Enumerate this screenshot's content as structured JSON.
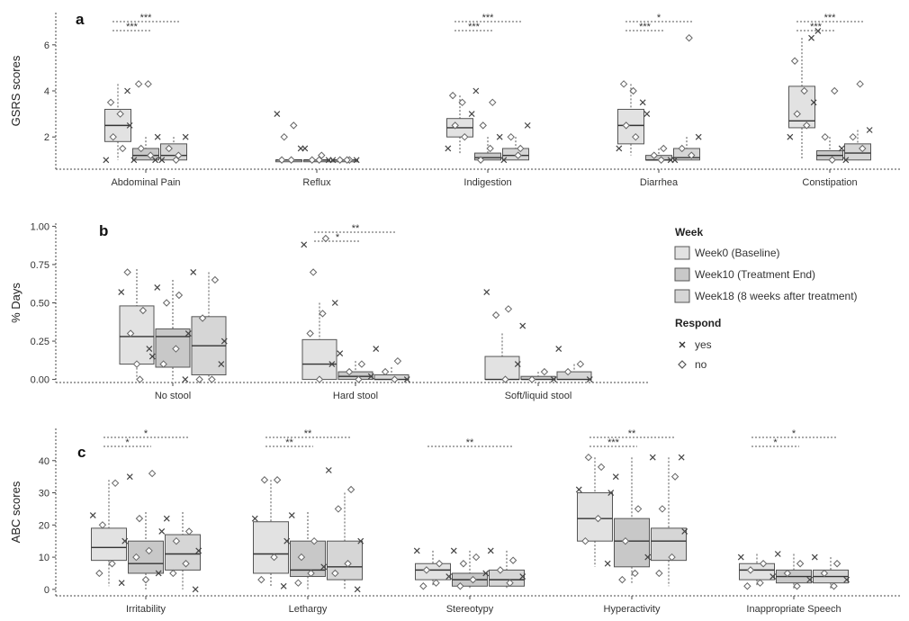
{
  "chart_data": [
    {
      "panel": "a",
      "type": "boxplot",
      "ylabel": "GSRS scores",
      "ylim": [
        0.6,
        7.4
      ],
      "yticks": [
        2,
        4,
        6
      ],
      "categories": [
        "Abdominal Pain",
        "Reflux",
        "Indigestion",
        "Diarrhea",
        "Constipation"
      ],
      "series": [
        {
          "name": "Week0 (Baseline)",
          "boxes": [
            [
              1.0,
              1.8,
              2.5,
              3.2,
              4.3
            ],
            [
              1.0,
              1.0,
              1.0,
              1.0,
              1.0
            ],
            [
              1.3,
              2.0,
              2.4,
              2.8,
              3.8
            ],
            [
              1.2,
              1.7,
              2.5,
              3.2,
              4.3
            ],
            [
              1.0,
              2.4,
              2.7,
              4.2,
              6.3
            ]
          ]
        },
        {
          "name": "Week10 (Treatment End)",
          "boxes": [
            [
              1.0,
              1.0,
              1.2,
              1.5,
              2.0
            ],
            [
              1.0,
              1.0,
              1.0,
              1.0,
              1.0
            ],
            [
              1.0,
              1.0,
              1.1,
              1.3,
              2.0
            ],
            [
              1.0,
              1.0,
              1.0,
              1.2,
              1.5
            ],
            [
              1.0,
              1.0,
              1.2,
              1.4,
              2.0
            ]
          ]
        },
        {
          "name": "Week18 (8 weeks after treatment)",
          "boxes": [
            [
              1.0,
              1.0,
              1.2,
              1.7,
              2.0
            ],
            [
              1.0,
              1.0,
              1.0,
              1.0,
              1.0
            ],
            [
              1.0,
              1.0,
              1.2,
              1.5,
              2.0
            ],
            [
              1.0,
              1.0,
              1.1,
              1.5,
              2.0
            ],
            [
              1.0,
              1.0,
              1.3,
              1.7,
              2.3
            ]
          ]
        }
      ],
      "points": [
        [
          [
            1.0,
            1.5,
            2.0,
            2.5,
            3.0,
            3.5,
            4.0
          ],
          [
            1.0,
            1.2,
            1.5,
            2.0,
            4.3,
            4.3,
            1.0
          ],
          [
            1.0,
            1.2,
            1.5,
            2.0,
            1.0
          ]
        ],
        [
          [
            3.0,
            2.5,
            2.0,
            1.5,
            1.0,
            1.0
          ],
          [
            1.5,
            1.2,
            1.0,
            1.0,
            1.0
          ],
          [
            1.0,
            1.0,
            1.0,
            1.0,
            1.0
          ]
        ],
        [
          [
            1.5,
            2.0,
            2.5,
            3.0,
            3.5,
            3.8
          ],
          [
            4.0,
            3.5,
            2.5,
            2.0,
            1.5,
            1.0
          ],
          [
            1.0,
            1.5,
            2.0,
            2.5,
            1.2
          ]
        ],
        [
          [
            1.5,
            2.0,
            2.5,
            3.5,
            4.0,
            4.3
          ],
          [
            3.0,
            1.5,
            1.2,
            1.0,
            1.0
          ],
          [
            1.0,
            1.2,
            1.5,
            2.0,
            6.3
          ]
        ],
        [
          [
            2.0,
            2.5,
            3.0,
            3.5,
            4.0,
            5.3,
            6.3
          ],
          [
            6.6,
            4.0,
            2.0,
            1.5,
            1.0
          ],
          [
            1.0,
            1.5,
            2.0,
            2.3,
            4.3
          ]
        ]
      ],
      "significance": [
        {
          "category": 0,
          "from": 0,
          "to": 1,
          "label": "***"
        },
        {
          "category": 0,
          "from": 0,
          "to": 2,
          "label": "***"
        },
        {
          "category": 2,
          "from": 0,
          "to": 1,
          "label": "***"
        },
        {
          "category": 2,
          "from": 0,
          "to": 2,
          "label": "***"
        },
        {
          "category": 3,
          "from": 0,
          "to": 1,
          "label": "***"
        },
        {
          "category": 3,
          "from": 0,
          "to": 2,
          "label": "*"
        },
        {
          "category": 4,
          "from": 0,
          "to": 1,
          "label": "***"
        },
        {
          "category": 4,
          "from": 0,
          "to": 2,
          "label": "***"
        }
      ]
    },
    {
      "panel": "b",
      "type": "boxplot",
      "ylabel": "% Days",
      "ylim": [
        -0.02,
        1.02
      ],
      "yticks": [
        0.0,
        0.25,
        0.5,
        0.75,
        1.0
      ],
      "ytick_labels": [
        "0.00",
        "0.25",
        "0.50",
        "0.75",
        "1.00"
      ],
      "categories": [
        "No stool",
        "Hard stool",
        "Soft/liquid stool"
      ],
      "series": [
        {
          "name": "Week0 (Baseline)",
          "boxes": [
            [
              0.0,
              0.1,
              0.28,
              0.48,
              0.72
            ],
            [
              0.0,
              0.0,
              0.1,
              0.26,
              0.5
            ],
            [
              0.0,
              0.0,
              0.0,
              0.15,
              0.3
            ]
          ]
        },
        {
          "name": "Week10 (Treatment End)",
          "boxes": [
            [
              0.0,
              0.08,
              0.28,
              0.33,
              0.65
            ],
            [
              0.0,
              0.0,
              0.02,
              0.05,
              0.12
            ],
            [
              0.0,
              0.0,
              0.0,
              0.02,
              0.05
            ]
          ]
        },
        {
          "name": "Week18 (8 weeks after treatment)",
          "boxes": [
            [
              0.0,
              0.03,
              0.22,
              0.41,
              0.7
            ],
            [
              0.0,
              0.0,
              0.0,
              0.03,
              0.08
            ],
            [
              0.0,
              0.0,
              0.0,
              0.05,
              0.1
            ]
          ]
        }
      ],
      "points": [
        [
          [
            0.57,
            0.45,
            0.3,
            0.15,
            0.0,
            0.7,
            0.2,
            0.1
          ],
          [
            0.6,
            0.55,
            0.5,
            0.3,
            0.2,
            0.1,
            0.0
          ],
          [
            0.7,
            0.65,
            0.4,
            0.25,
            0.0,
            0.0,
            0.1
          ]
        ],
        [
          [
            0.88,
            0.92,
            0.7,
            0.5,
            0.43,
            0.3,
            0.1,
            0.0
          ],
          [
            0.17,
            0.1,
            0.05,
            0.02,
            0.0
          ],
          [
            0.2,
            0.12,
            0.05,
            0.0,
            0.0
          ]
        ],
        [
          [
            0.57,
            0.46,
            0.42,
            0.1,
            0.0
          ],
          [
            0.35,
            0.05,
            0.0,
            0.0
          ],
          [
            0.2,
            0.1,
            0.05,
            0.0
          ]
        ]
      ],
      "significance": [
        {
          "category": 1,
          "from": 0,
          "to": 1,
          "label": "*"
        },
        {
          "category": 1,
          "from": 0,
          "to": 2,
          "label": "**"
        }
      ]
    },
    {
      "panel": "c",
      "type": "boxplot",
      "ylabel": "ABC scores",
      "ylim": [
        -2,
        50
      ],
      "yticks": [
        0,
        10,
        20,
        30,
        40
      ],
      "categories": [
        "Irritability",
        "Lethargy",
        "Stereotypy",
        "Hyperactivity",
        "Inappropriate Speech"
      ],
      "series": [
        {
          "name": "Week0 (Baseline)",
          "boxes": [
            [
              1,
              9,
              13,
              19,
              34
            ],
            [
              1,
              5,
              11,
              21,
              34
            ],
            [
              1,
              3,
              6,
              8,
              12
            ],
            [
              7,
              15,
              22,
              30,
              41
            ],
            [
              1,
              3,
              6,
              8,
              11
            ]
          ]
        },
        {
          "name": "Week10 (Treatment End)",
          "boxes": [
            [
              0,
              5,
              8,
              15,
              24
            ],
            [
              0,
              4,
              6,
              15,
              24
            ],
            [
              0,
              1,
              3,
              5,
              12
            ],
            [
              2,
              7,
              15,
              22,
              41
            ],
            [
              0,
              2,
              4,
              6,
              11
            ]
          ]
        },
        {
          "name": "Week18 (8 weeks after treatment)",
          "boxes": [
            [
              0,
              6,
              11,
              17,
              24
            ],
            [
              0,
              3,
              7,
              15,
              30
            ],
            [
              0,
              1,
              3,
              6,
              12
            ],
            [
              1,
              9,
              15,
              19,
              41
            ],
            [
              0,
              2,
              4,
              6,
              10
            ]
          ]
        }
      ],
      "points": [
        [
          [
            23,
            33,
            20,
            15,
            8,
            5,
            2
          ],
          [
            35,
            36,
            22,
            18,
            12,
            10,
            5,
            3
          ],
          [
            22,
            18,
            15,
            12,
            8,
            5,
            0
          ]
        ],
        [
          [
            22,
            34,
            34,
            15,
            10,
            3,
            1
          ],
          [
            23,
            15,
            10,
            7,
            5,
            2
          ],
          [
            37,
            31,
            25,
            15,
            8,
            5,
            0
          ]
        ],
        [
          [
            12,
            8,
            6,
            4,
            2,
            1
          ],
          [
            12,
            10,
            8,
            5,
            3,
            1
          ],
          [
            12,
            9,
            6,
            4,
            2
          ]
        ],
        [
          [
            31,
            38,
            41,
            30,
            22,
            15,
            8
          ],
          [
            35,
            25,
            15,
            10,
            5,
            3
          ],
          [
            41,
            35,
            25,
            18,
            10,
            5,
            41
          ]
        ],
        [
          [
            10,
            8,
            6,
            4,
            2,
            1
          ],
          [
            11,
            8,
            5,
            3,
            1
          ],
          [
            10,
            8,
            5,
            3,
            1
          ]
        ]
      ],
      "significance": [
        {
          "category": 0,
          "from": 0,
          "to": 1,
          "label": "*"
        },
        {
          "category": 0,
          "from": 0,
          "to": 2,
          "label": "*"
        },
        {
          "category": 1,
          "from": 0,
          "to": 1,
          "label": "**"
        },
        {
          "category": 1,
          "from": 0,
          "to": 2,
          "label": "**"
        },
        {
          "category": 2,
          "from": 0,
          "to": 2,
          "label": "**"
        },
        {
          "category": 3,
          "from": 0,
          "to": 1,
          "label": "***"
        },
        {
          "category": 3,
          "from": 0,
          "to": 2,
          "label": "**"
        },
        {
          "category": 4,
          "from": 0,
          "to": 1,
          "label": "*"
        },
        {
          "category": 4,
          "from": 0,
          "to": 2,
          "label": "*"
        }
      ]
    }
  ],
  "legend": {
    "week_title": "Week",
    "weeks": [
      "Week0 (Baseline)",
      "Week10 (Treatment End)",
      "Week18 (8 weeks after treatment)"
    ],
    "respond_title": "Respond",
    "respond": [
      {
        "label": "yes",
        "marker": "cross"
      },
      {
        "label": "no",
        "marker": "diamond"
      }
    ]
  },
  "colors": {
    "week0": "#e2e2e2",
    "week10": "#c8c8c8",
    "week18": "#d6d6d6",
    "box_edge": "#555555",
    "axis": "#444444"
  }
}
